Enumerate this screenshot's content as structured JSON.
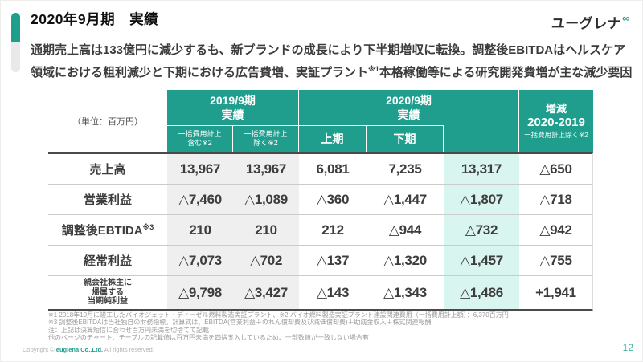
{
  "colors": {
    "teal": "#1f9e8e",
    "mint_highlight": "#d9f5ef",
    "gray_column": "#efefef",
    "thick_rule": "#4a4a4a"
  },
  "header": {
    "title": "2020年9月期　実績",
    "logo_text": "ユーグレナ",
    "logo_mark": "∞",
    "summary_line1": "通期売上高は133億円に減少するも、新ブランドの成長により下半期増収に転換。調整後EBITDAはヘルスケア",
    "summary_line2_pre": "領域における粗利減少と下期における広告費増、実証プラント",
    "summary_sup": "※1",
    "summary_line2_post": "本格稼働等による研究開発費増が主な減少要因"
  },
  "table": {
    "unit_label": "（単位：百万円）",
    "group_2019": "2019/9期\n実績",
    "group_2020": "2020/9期\n実績",
    "group_diff_line1": "増減",
    "group_diff_line2": "2020-2019",
    "group_diff_note": "一括費用計上除く※2",
    "sub_include": "一括費用計上\n含む※2",
    "sub_exclude": "一括費用計上\n除く※2",
    "sub_h1": "上期",
    "sub_h2": "下期",
    "rows": [
      {
        "label": "売上高",
        "label_sup": "",
        "values": [
          "13,967",
          "13,967",
          "6,081",
          "7,235",
          "13,317",
          "△650"
        ]
      },
      {
        "label": "営業利益",
        "label_sup": "",
        "values": [
          "△7,460",
          "△1,089",
          "△360",
          "△1,447",
          "△1,807",
          "△718"
        ]
      },
      {
        "label": "調整後EBTIDA",
        "label_sup": "※3",
        "values": [
          "210",
          "210",
          "212",
          "△944",
          "△732",
          "△942"
        ]
      },
      {
        "label": "経常利益",
        "label_sup": "",
        "values": [
          "△7,073",
          "△702",
          "△137",
          "△1,320",
          "△1,457",
          "△755"
        ]
      },
      {
        "label": "親会社株主に\n帰属する\n当期純利益",
        "label_sup": "",
        "values": [
          "△9,798",
          "△3,427",
          "△143",
          "△1,343",
          "△1,486",
          "+1,941"
        ]
      }
    ]
  },
  "footnotes": [
    "※1 2018年10月に竣工したバイオジェット・ディーゼル燃料製造実証プラント、※2 バイオ燃料製造実証プラント建設関連費用（一括費用計上額）：6,370百万円",
    "※3 調整後EBITDAは当社独自の財務指標。計算式は、EBITDA(営業利益＋のれん償却費及び減価償却費)＋助成金収入＋株式関連報酬",
    "注：上記は決算短信に合わせ百万円未満を切捨てて記載",
    "他のページのチャート、テーブルの記載値は百万円未満を四捨五入しているため、一部数値が一致しない場合有"
  ],
  "footer": {
    "copyright_pre": "Copyright © ",
    "copyright_brand": "euglena Co.,Ltd.",
    "copyright_post": " All rights reserved.",
    "page_number": "12"
  }
}
